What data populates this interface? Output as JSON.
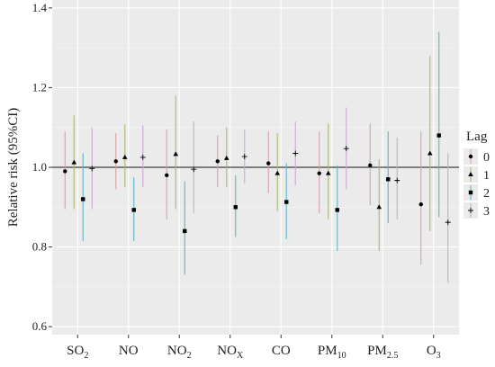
{
  "chart_data": {
    "type": "scatter",
    "subtype": "point-range",
    "ylabel": "Relative risk (95%CI)",
    "xlabel": "",
    "ylim": [
      0.58,
      1.42
    ],
    "yticks": [
      0.6,
      0.8,
      1.0,
      1.2,
      1.4
    ],
    "ytick_labels": [
      "0.6",
      "0.8",
      "1.0",
      "1.2",
      "1.4"
    ],
    "reference_line": 1.0,
    "grid": true,
    "legend": {
      "title": "Lag",
      "position": "right",
      "entries": [
        "0",
        "1",
        "2",
        "3"
      ]
    },
    "categories": [
      {
        "base": "SO",
        "sub": "2"
      },
      {
        "base": "NO",
        "sub": ""
      },
      {
        "base": "NO",
        "sub": "2"
      },
      {
        "base": "NO",
        "sub": "X"
      },
      {
        "base": "CO",
        "sub": ""
      },
      {
        "base": "PM",
        "sub": "10"
      },
      {
        "base": "PM",
        "sub": "2.5"
      },
      {
        "base": "O",
        "sub": "3"
      }
    ],
    "series": [
      {
        "name": "0",
        "marker": "circle",
        "color": "#d9a0a8",
        "points": [
          {
            "est": 0.99,
            "lo": 0.895,
            "hi": 1.09
          },
          {
            "est": 1.015,
            "lo": 0.945,
            "hi": 1.085
          },
          {
            "est": 0.98,
            "lo": 0.87,
            "hi": 1.095
          },
          {
            "est": 1.015,
            "lo": 0.95,
            "hi": 1.08
          },
          {
            "est": 1.01,
            "lo": 0.935,
            "hi": 1.09
          },
          {
            "est": 0.985,
            "lo": 0.885,
            "hi": 1.09
          },
          {
            "est": 1.005,
            "lo": 0.905,
            "hi": 1.11
          },
          {
            "est": 0.907,
            "lo": 0.755,
            "hi": 1.09
          }
        ]
      },
      {
        "name": "1",
        "marker": "triangle",
        "color": "#a8b870",
        "points": [
          {
            "est": 1.012,
            "lo": 0.895,
            "hi": 1.13
          },
          {
            "est": 1.025,
            "lo": 0.95,
            "hi": 1.108
          },
          {
            "est": 1.033,
            "lo": 0.895,
            "hi": 1.18
          },
          {
            "est": 1.023,
            "lo": 0.95,
            "hi": 1.1
          },
          {
            "est": 0.985,
            "lo": 0.89,
            "hi": 1.085
          },
          {
            "est": 0.985,
            "lo": 0.87,
            "hi": 1.11
          },
          {
            "est": 0.9,
            "lo": 0.79,
            "hi": 1.02
          },
          {
            "est": 1.035,
            "lo": 0.84,
            "hi": 1.28
          }
        ]
      },
      {
        "name": "2",
        "marker": "square",
        "color": "#5fb4c8",
        "points": [
          {
            "est": 0.92,
            "lo": 0.815,
            "hi": 1.035
          },
          {
            "est": 0.893,
            "lo": 0.815,
            "hi": 0.975
          },
          {
            "est": 0.84,
            "lo": 0.73,
            "hi": 0.965
          },
          {
            "est": 0.9,
            "lo": 0.825,
            "hi": 0.98
          },
          {
            "est": 0.913,
            "lo": 0.82,
            "hi": 1.01
          },
          {
            "est": 0.893,
            "lo": 0.79,
            "hi": 1.005
          },
          {
            "est": 0.97,
            "lo": 0.86,
            "hi": 1.09
          },
          {
            "est": 1.08,
            "lo": 0.875,
            "hi": 1.34
          }
        ]
      },
      {
        "name": "3",
        "marker": "plus",
        "color": "#c9a8d8",
        "points": [
          {
            "est": 0.997,
            "lo": 0.895,
            "hi": 1.1
          },
          {
            "est": 1.025,
            "lo": 0.95,
            "hi": 1.105
          },
          {
            "est": 0.995,
            "lo": 0.885,
            "hi": 1.115
          },
          {
            "est": 1.027,
            "lo": 0.96,
            "hi": 1.095
          },
          {
            "est": 1.035,
            "lo": 0.955,
            "hi": 1.115
          },
          {
            "est": 1.047,
            "lo": 0.945,
            "hi": 1.15
          },
          {
            "est": 0.967,
            "lo": 0.87,
            "hi": 1.075
          },
          {
            "est": 0.862,
            "lo": 0.71,
            "hi": 1.035
          }
        ]
      }
    ]
  }
}
